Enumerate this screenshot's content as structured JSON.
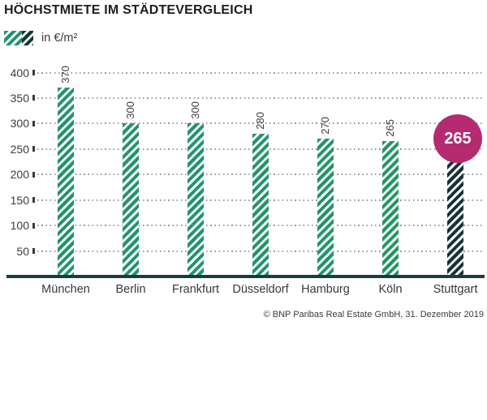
{
  "title": "HÖCHSTMIETE IM STÄDTEVERGLEICH",
  "legend": {
    "label": "in €/m²",
    "swatch_green": "#21956a",
    "swatch_dark": "#15323a"
  },
  "chart_data": {
    "type": "bar",
    "title": "HÖCHSTMIETE IM STÄDTEVERGLEICH",
    "unit_label": "in €/m²",
    "categories": [
      "München",
      "Berlin",
      "Frankfurt",
      "Düsseldorf",
      "Hamburg",
      "Köln",
      "Stuttgart"
    ],
    "values": [
      370,
      300,
      300,
      280,
      270,
      265,
      265
    ],
    "xlabel": "",
    "ylabel": "",
    "ylim": [
      0,
      400
    ],
    "yticks": [
      50,
      100,
      150,
      200,
      250,
      300,
      350,
      400
    ],
    "grid": "horizontal-dotted",
    "legend_position": "top-left",
    "bar_pattern": "diagonal-hatch",
    "bar_colors": {
      "default": "#21956a",
      "highlight": "#15323a"
    },
    "highlight_index": 6,
    "highlight": {
      "category": "Stuttgart",
      "value": 265,
      "badge_label": "265",
      "badge_color": "#b52b6f",
      "badge_text_color": "#ffffff"
    },
    "axis_line_color": "#1c3a42"
  },
  "source": "© BNP Paribas Real Estate GmbH, 31. Dezember 2019"
}
